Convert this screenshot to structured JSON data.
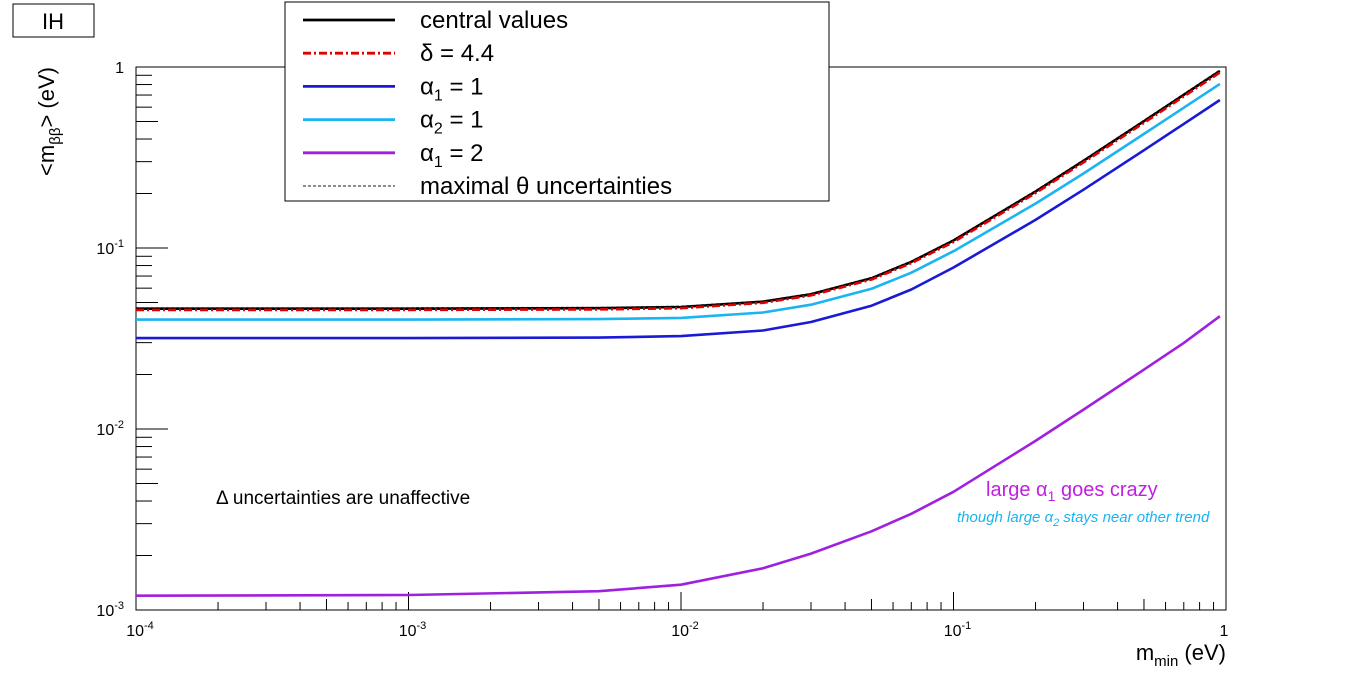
{
  "panel_label": "IH",
  "chart_data": {
    "type": "line",
    "xscale": "log",
    "yscale": "log",
    "xlim": [
      0.0001,
      1
    ],
    "ylim": [
      0.001,
      1
    ],
    "xlabel": {
      "main": "m",
      "sub": "min",
      "unit": " (eV)"
    },
    "ylabel": {
      "pre": "<m",
      "sub": "ββ",
      "post": "> (eV)"
    },
    "x_ticks": [
      {
        "value": 0.0001,
        "base": "10",
        "exp": "-4"
      },
      {
        "value": 0.001,
        "base": "10",
        "exp": "-3"
      },
      {
        "value": 0.01,
        "base": "10",
        "exp": "-2"
      },
      {
        "value": 0.1,
        "base": "10",
        "exp": "-1"
      },
      {
        "value": 1,
        "base": "1",
        "exp": ""
      }
    ],
    "y_ticks": [
      {
        "value": 0.001,
        "base": "10",
        "exp": "-3"
      },
      {
        "value": 0.01,
        "base": "10",
        "exp": "-2"
      },
      {
        "value": 0.1,
        "base": "10",
        "exp": "-1"
      },
      {
        "value": 1,
        "base": "1",
        "exp": ""
      }
    ],
    "x": [
      0.0001,
      0.001,
      0.005,
      0.01,
      0.02,
      0.03,
      0.05,
      0.07,
      0.1,
      0.2,
      0.3,
      0.5,
      0.7,
      0.95
    ],
    "series": [
      {
        "name": "central values",
        "color": "#000000",
        "style": "solid",
        "values": [
          0.0462,
          0.0462,
          0.0465,
          0.0472,
          0.0505,
          0.0555,
          0.068,
          0.0838,
          0.11,
          0.205,
          0.303,
          0.502,
          0.702,
          0.951
        ]
      },
      {
        "name": "δ = 4.4",
        "color": "#e00000",
        "style": "dashdot",
        "values": [
          0.0455,
          0.0455,
          0.0458,
          0.0465,
          0.0498,
          0.0547,
          0.067,
          0.0825,
          0.108,
          0.201,
          0.297,
          0.492,
          0.688,
          0.932
        ]
      },
      {
        "name": "α₁ = 1",
        "color": "#1a1ad6",
        "style": "solid",
        "values": [
          0.0318,
          0.0318,
          0.032,
          0.0326,
          0.035,
          0.039,
          0.048,
          0.059,
          0.078,
          0.143,
          0.21,
          0.347,
          0.485,
          0.657
        ]
      },
      {
        "name": "α₂ = 1",
        "color": "#1ab4f0",
        "style": "solid",
        "values": [
          0.0402,
          0.0402,
          0.0405,
          0.0411,
          0.044,
          0.0486,
          0.0595,
          0.073,
          0.096,
          0.176,
          0.258,
          0.427,
          0.596,
          0.807
        ]
      },
      {
        "name": "α₁ = 2",
        "color": "#a020e0",
        "style": "solid",
        "values": [
          0.0012,
          0.00121,
          0.00127,
          0.00138,
          0.0017,
          0.00205,
          0.00272,
          0.0034,
          0.0045,
          0.0086,
          0.0128,
          0.0213,
          0.0299,
          0.042
        ]
      },
      {
        "name": "maximal θ uncertainties",
        "color": "#666666",
        "style": "dotted",
        "values": [
          0.0466,
          0.0466,
          0.0469,
          0.0476,
          0.0509,
          0.056,
          0.0686,
          0.0845,
          0.111,
          0.207,
          0.306,
          0.507,
          0.709,
          0.96
        ]
      }
    ],
    "legend": {
      "placement": "top-left",
      "entries": [
        {
          "text": "central values",
          "sub": "",
          "after": ""
        },
        {
          "text": "δ = 4.4",
          "sub": "",
          "after": ""
        },
        {
          "text": "α",
          "sub": "1",
          "after": " = 1"
        },
        {
          "text": "α",
          "sub": "2",
          "after": " = 1"
        },
        {
          "text": "α",
          "sub": "1",
          "after": " = 2"
        },
        {
          "text": "maximal θ uncertainties",
          "sub": "",
          "after": ""
        }
      ]
    },
    "annotations": {
      "delta_note": "Δ uncertainties are unaffective",
      "alpha1_note": {
        "pre": "large α",
        "sub": "1",
        "post": " goes crazy",
        "color": "#c020e0"
      },
      "alpha2_note": {
        "pre": "though large α",
        "sub": "2",
        "post": " stays near other trend",
        "color": "#1ab4f0"
      }
    },
    "grid": false
  }
}
